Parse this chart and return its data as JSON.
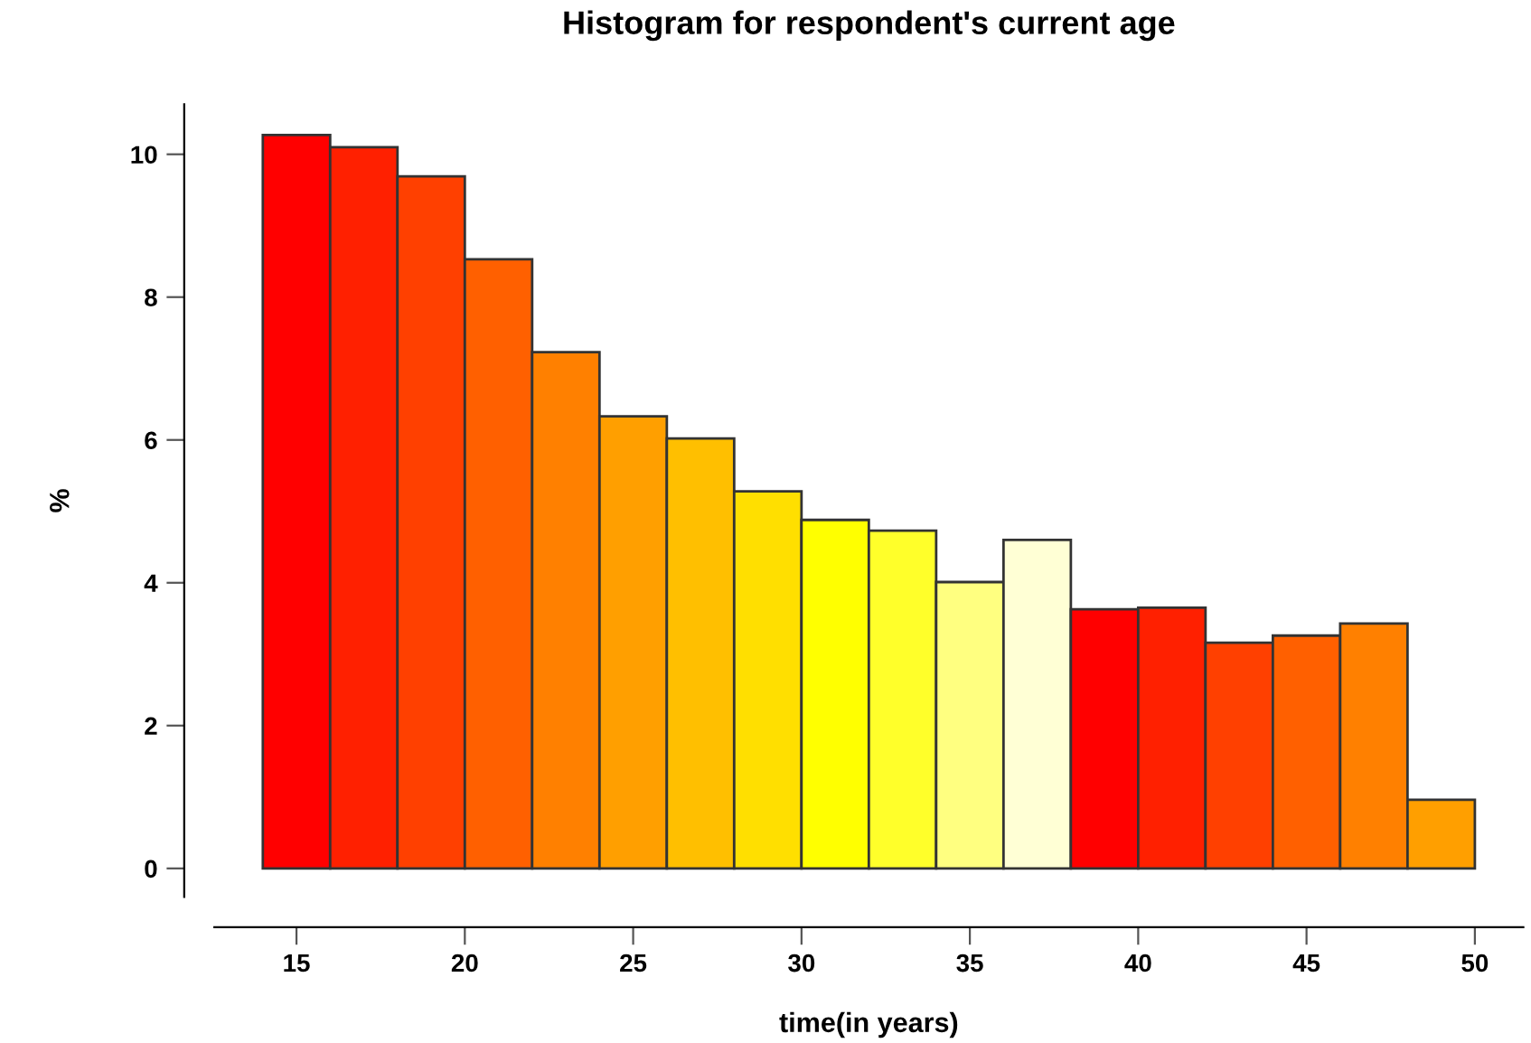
{
  "chart_data": {
    "type": "histogram",
    "title": "Histogram for respondent's current age",
    "xlabel": "time(in years)",
    "ylabel": "%",
    "bins": [
      14,
      16,
      18,
      20,
      22,
      24,
      26,
      28,
      30,
      32,
      34,
      36,
      38,
      40,
      42,
      44,
      46,
      48,
      50
    ],
    "values": [
      10.27,
      10.1,
      9.69,
      8.53,
      7.23,
      6.33,
      6.02,
      5.28,
      4.88,
      4.73,
      4.01,
      4.6,
      3.63,
      3.65,
      3.16,
      3.26,
      3.43,
      0.96
    ],
    "colors": [
      "#ff0000",
      "#ff2000",
      "#ff4000",
      "#ff6000",
      "#ff8000",
      "#ff9f00",
      "#ffbf00",
      "#ffdf00",
      "#ffff00",
      "#ffff2a",
      "#ffff80",
      "#ffffd5",
      "#ff0000",
      "#ff2000",
      "#ff4000",
      "#ff6000",
      "#ff8000",
      "#ff9f00"
    ],
    "xlim": [
      12.56,
      51.44
    ],
    "ylim": [
      -0.4,
      10.7
    ],
    "xticks": [
      15,
      20,
      25,
      30,
      35,
      40,
      45,
      50
    ],
    "yticks": [
      0,
      2,
      4,
      6,
      8,
      10
    ],
    "grid": false,
    "legend": false
  }
}
